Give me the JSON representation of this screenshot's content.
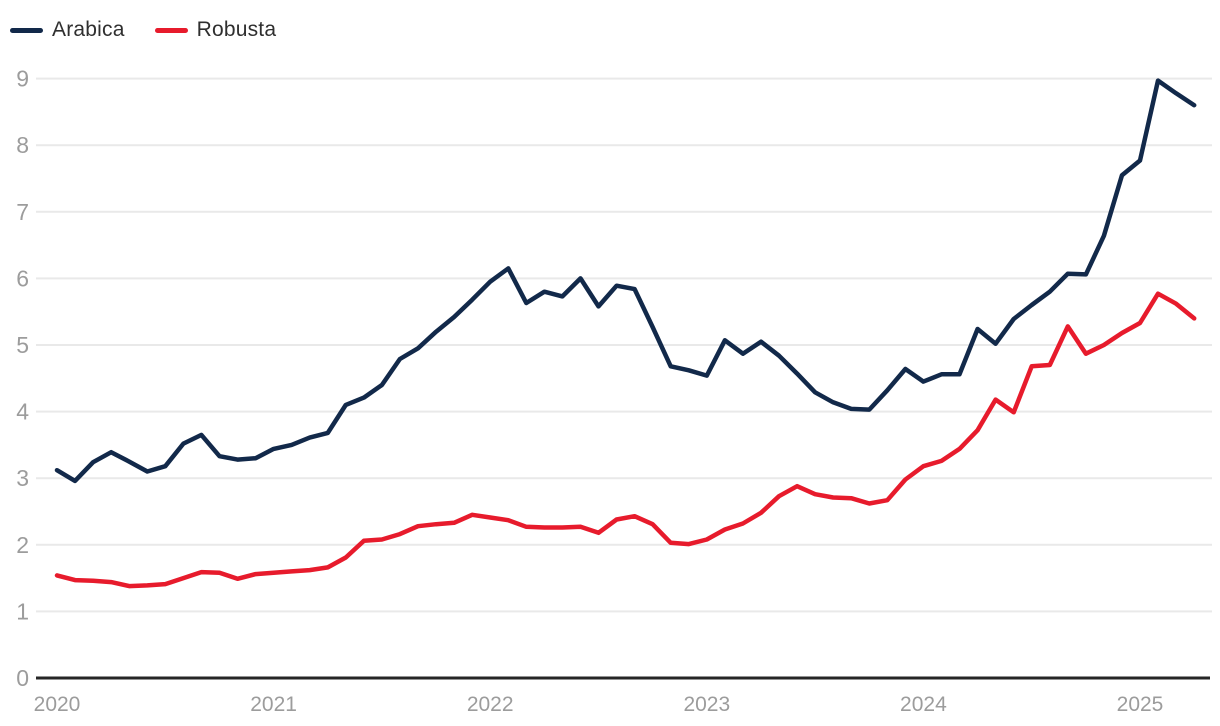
{
  "legend": {
    "items": [
      {
        "label": "Arabica",
        "color": "#12294a"
      },
      {
        "label": "Robusta",
        "color": "#e71b2c"
      }
    ]
  },
  "colors": {
    "background": "#ffffff",
    "grid": "#e9e9e9",
    "zero_axis": "#262626",
    "tick_label": "#9c9c9c",
    "arabica_line": "#12294a",
    "robusta_line": "#e71b2c"
  },
  "chart_data": {
    "type": "line",
    "title": "",
    "xlabel": "",
    "ylabel": "",
    "x_unit": "month",
    "x_start": "2020-01",
    "x_end": "2025-04",
    "x_tick_labels": [
      "2020",
      "2021",
      "2022",
      "2023",
      "2024",
      "2025"
    ],
    "x_tick_positions_months": [
      0,
      12,
      24,
      36,
      48,
      60
    ],
    "y_ticks": [
      0,
      1,
      2,
      3,
      4,
      5,
      6,
      7,
      8,
      9
    ],
    "ylim": [
      0,
      9
    ],
    "grid": "horizontal",
    "legend_position": "top-left",
    "series": [
      {
        "name": "Arabica",
        "color": "#12294a",
        "values": [
          3.12,
          2.96,
          3.24,
          3.39,
          3.25,
          3.1,
          3.18,
          3.52,
          3.65,
          3.33,
          3.28,
          3.3,
          3.44,
          3.5,
          3.61,
          3.68,
          4.1,
          4.21,
          4.4,
          4.79,
          4.95,
          5.2,
          5.42,
          5.68,
          5.95,
          6.15,
          5.63,
          5.8,
          5.73,
          6.0,
          5.58,
          5.89,
          5.84,
          5.27,
          4.68,
          4.62,
          4.54,
          5.07,
          4.87,
          5.05,
          4.84,
          4.57,
          4.29,
          4.14,
          4.04,
          4.03,
          4.32,
          4.64,
          4.45,
          4.56,
          4.56,
          5.24,
          5.02,
          5.39,
          5.6,
          5.8,
          6.07,
          6.06,
          6.64,
          7.55,
          7.77,
          8.97,
          8.78,
          8.6
        ]
      },
      {
        "name": "Robusta",
        "color": "#e71b2c",
        "values": [
          1.54,
          1.47,
          1.46,
          1.44,
          1.38,
          1.39,
          1.41,
          1.5,
          1.59,
          1.58,
          1.49,
          1.56,
          1.58,
          1.6,
          1.62,
          1.66,
          1.81,
          2.06,
          2.08,
          2.16,
          2.28,
          2.31,
          2.33,
          2.45,
          2.41,
          2.37,
          2.27,
          2.26,
          2.26,
          2.27,
          2.18,
          2.38,
          2.43,
          2.31,
          2.03,
          2.01,
          2.08,
          2.23,
          2.32,
          2.48,
          2.73,
          2.88,
          2.76,
          2.71,
          2.7,
          2.62,
          2.67,
          2.98,
          3.18,
          3.26,
          3.44,
          3.72,
          4.18,
          3.99,
          4.68,
          4.7,
          5.28,
          4.87,
          5.0,
          5.18,
          5.33,
          5.77,
          5.62,
          5.4
        ]
      }
    ]
  }
}
